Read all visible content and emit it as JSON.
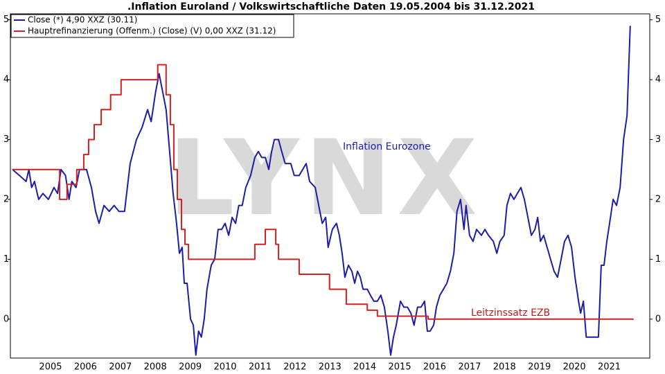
{
  "chart_data": {
    "type": "line",
    "title": ".Inflation Euroland / Volkswirtschaftliche Daten 19.05.2004 bis 31.12.2021",
    "watermark": "LYNX",
    "annotations": [
      "Inflation Eurozone",
      "Leitzinssatz EZB"
    ],
    "xlim": [
      2004.35,
      2022.66
    ],
    "xticks": [
      {
        "value": 2005.5,
        "label": "2005"
      },
      {
        "value": 2006.5,
        "label": "2006"
      },
      {
        "value": 2007.5,
        "label": "2007"
      },
      {
        "value": 2008.5,
        "label": "2008"
      },
      {
        "value": 2009.5,
        "label": "2009"
      },
      {
        "value": 2010.5,
        "label": "2010"
      },
      {
        "value": 2011.5,
        "label": "2011"
      },
      {
        "value": 2012.5,
        "label": "2012"
      },
      {
        "value": 2013.5,
        "label": "2013"
      },
      {
        "value": 2014.5,
        "label": "2014"
      },
      {
        "value": 2015.5,
        "label": "2015"
      },
      {
        "value": 2016.5,
        "label": "2016"
      },
      {
        "value": 2017.5,
        "label": "2017"
      },
      {
        "value": 2018.5,
        "label": "2018"
      },
      {
        "value": 2019.5,
        "label": "2019"
      },
      {
        "value": 2020.5,
        "label": "2020"
      },
      {
        "value": 2021.5,
        "label": "2021"
      }
    ],
    "ylim": [
      -0.65,
      5.1
    ],
    "yticks": [
      0,
      1,
      2,
      3,
      4,
      5
    ],
    "grid": false,
    "legend": "top-left",
    "series": [
      {
        "name": "Close (*) 4,90 XXZ (30.11)",
        "color": "#1c1ca6",
        "x": [
          2004.41,
          2004.61,
          2004.8,
          2004.88,
          2004.96,
          2005.04,
          2005.16,
          2005.28,
          2005.44,
          2005.6,
          2005.7,
          2005.8,
          2005.93,
          2006.03,
          2006.11,
          2006.23,
          2006.33,
          2006.53,
          2006.67,
          2006.79,
          2006.89,
          2007.03,
          2007.18,
          2007.32,
          2007.46,
          2007.62,
          2007.78,
          2007.96,
          2008.12,
          2008.28,
          2008.38,
          2008.51,
          2008.61,
          2008.71,
          2008.81,
          2008.91,
          2009.01,
          2009.11,
          2009.19,
          2009.27,
          2009.33,
          2009.41,
          2009.51,
          2009.59,
          2009.66,
          2009.74,
          2009.82,
          2009.9,
          2009.98,
          2010.1,
          2010.2,
          2010.3,
          2010.4,
          2010.5,
          2010.6,
          2010.7,
          2010.8,
          2010.89,
          2010.99,
          2011.09,
          2011.23,
          2011.35,
          2011.45,
          2011.55,
          2011.65,
          2011.75,
          2011.83,
          2011.91,
          2012.03,
          2012.12,
          2012.22,
          2012.38,
          2012.48,
          2012.62,
          2012.72,
          2012.82,
          2012.92,
          2013.08,
          2013.18,
          2013.28,
          2013.38,
          2013.45,
          2013.57,
          2013.69,
          2013.77,
          2013.85,
          2013.93,
          2014.03,
          2014.13,
          2014.21,
          2014.29,
          2014.37,
          2014.45,
          2014.57,
          2014.66,
          2014.76,
          2014.86,
          2014.96,
          2015.06,
          2015.16,
          2015.24,
          2015.32,
          2015.4,
          2015.52,
          2015.62,
          2015.72,
          2015.82,
          2015.91,
          2016.01,
          2016.11,
          2016.21,
          2016.29,
          2016.37,
          2016.47,
          2016.55,
          2016.65,
          2016.75,
          2016.85,
          2016.95,
          2017.05,
          2017.14,
          2017.24,
          2017.34,
          2017.4,
          2017.5,
          2017.6,
          2017.7,
          2017.84,
          2017.94,
          2018.04,
          2018.18,
          2018.28,
          2018.37,
          2018.49,
          2018.57,
          2018.67,
          2018.77,
          2018.87,
          2018.97,
          2019.07,
          2019.17,
          2019.27,
          2019.37,
          2019.45,
          2019.53,
          2019.62,
          2019.72,
          2019.82,
          2019.92,
          2020.02,
          2020.12,
          2020.22,
          2020.32,
          2020.42,
          2020.52,
          2020.62,
          2020.68,
          2020.76,
          2020.84,
          2020.95,
          2021.07,
          2021.19,
          2021.27,
          2021.35,
          2021.43,
          2021.51,
          2021.61,
          2021.71,
          2021.81,
          2021.91,
          2022.01,
          2022.1
        ],
        "values": [
          2.5,
          2.4,
          2.3,
          2.5,
          2.2,
          2.3,
          2.0,
          2.1,
          2.0,
          2.2,
          2.1,
          2.5,
          2.4,
          2.0,
          2.3,
          2.2,
          2.5,
          2.5,
          2.2,
          1.8,
          1.6,
          1.9,
          1.8,
          1.9,
          1.8,
          1.8,
          2.6,
          3.0,
          3.2,
          3.5,
          3.3,
          3.8,
          4.1,
          3.8,
          3.5,
          2.8,
          2.1,
          1.6,
          1.1,
          1.2,
          0.6,
          0.6,
          0.0,
          -0.1,
          -0.6,
          -0.2,
          -0.3,
          0.0,
          0.5,
          0.9,
          1.0,
          1.5,
          1.5,
          1.6,
          1.4,
          1.7,
          1.6,
          1.9,
          1.9,
          2.2,
          2.4,
          2.7,
          2.8,
          2.7,
          2.7,
          2.5,
          2.8,
          3.0,
          3.0,
          2.8,
          2.6,
          2.6,
          2.4,
          2.4,
          2.5,
          2.6,
          2.3,
          2.2,
          1.9,
          1.6,
          1.7,
          1.2,
          1.5,
          1.6,
          1.4,
          1.1,
          0.7,
          0.9,
          0.8,
          0.6,
          0.8,
          0.7,
          0.5,
          0.5,
          0.4,
          0.3,
          0.3,
          0.4,
          0.2,
          -0.2,
          -0.6,
          -0.3,
          -0.1,
          0.3,
          0.2,
          0.2,
          0.1,
          -0.1,
          0.2,
          0.2,
          0.3,
          -0.2,
          -0.2,
          -0.1,
          0.2,
          0.4,
          0.5,
          0.6,
          0.8,
          1.1,
          1.8,
          2.0,
          1.5,
          1.9,
          1.4,
          1.3,
          1.5,
          1.4,
          1.5,
          1.4,
          1.3,
          1.1,
          1.3,
          1.4,
          1.9,
          2.1,
          2.0,
          2.1,
          2.2,
          2.0,
          1.7,
          1.4,
          1.5,
          1.7,
          1.3,
          1.4,
          1.2,
          1.0,
          0.8,
          0.7,
          1.0,
          1.3,
          1.4,
          1.2,
          0.7,
          0.3,
          0.1,
          0.3,
          -0.3,
          -0.3,
          -0.3,
          -0.3,
          0.9,
          0.9,
          1.3,
          1.6,
          2.0,
          1.9,
          2.2,
          3.0,
          3.4,
          4.9
        ]
      },
      {
        "name": "Hauptrefinanzierung (Offenm.) (Close) (V) 0,00 XXZ (31.12)",
        "color": "#d42020",
        "x": [
          2004.41,
          2005.76,
          2005.76,
          2005.97,
          2005.97,
          2006.25,
          2006.25,
          2006.45,
          2006.45,
          2006.59,
          2006.59,
          2006.75,
          2006.75,
          2006.95,
          2006.95,
          2007.22,
          2007.22,
          2007.52,
          2007.52,
          2008.57,
          2008.57,
          2008.81,
          2008.81,
          2008.93,
          2008.93,
          2009.03,
          2009.03,
          2009.13,
          2009.13,
          2009.25,
          2009.25,
          2009.35,
          2009.35,
          2009.45,
          2009.45,
          2011.35,
          2011.35,
          2011.65,
          2011.65,
          2011.95,
          2011.95,
          2012.03,
          2012.03,
          2012.62,
          2012.62,
          2013.49,
          2013.49,
          2013.97,
          2013.97,
          2014.57,
          2014.57,
          2014.86,
          2014.86,
          2016.31,
          2016.31,
          2022.2
        ],
        "values": [
          2.5,
          2.5,
          2.0,
          2.0,
          2.25,
          2.25,
          2.5,
          2.5,
          2.75,
          2.75,
          3.0,
          3.0,
          3.25,
          3.25,
          3.5,
          3.5,
          3.75,
          3.75,
          4.0,
          4.0,
          4.25,
          4.25,
          3.75,
          3.75,
          3.25,
          3.25,
          2.5,
          2.5,
          2.0,
          2.0,
          1.5,
          1.5,
          1.25,
          1.25,
          1.0,
          1.0,
          1.25,
          1.25,
          1.5,
          1.5,
          1.25,
          1.25,
          1.0,
          1.0,
          0.75,
          0.75,
          0.5,
          0.5,
          0.25,
          0.25,
          0.15,
          0.15,
          0.05,
          0.05,
          0.0,
          0.0
        ]
      }
    ]
  }
}
